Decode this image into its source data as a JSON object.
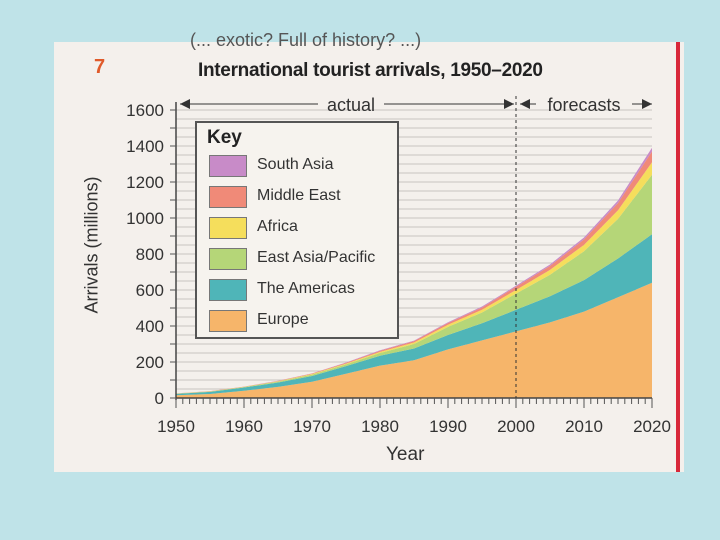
{
  "figure_number": "7",
  "cut_text": "(... exotic? Full of history? ...)",
  "chart_data": {
    "type": "area",
    "stacked": true,
    "title": "International tourist arrivals, 1950–2020",
    "xlabel": "Year",
    "ylabel": "Arrivals (millions)",
    "xlim": [
      1950,
      2020
    ],
    "ylim": [
      0,
      1600
    ],
    "x_ticks": [
      1950,
      1960,
      1970,
      1980,
      1990,
      2000,
      2010,
      2020
    ],
    "y_ticks": [
      0,
      200,
      400,
      600,
      800,
      1000,
      1200,
      1400,
      1600
    ],
    "annotations": {
      "actual": "actual",
      "forecasts": "forecasts",
      "split_year": 2000
    },
    "legend_title": "Key",
    "legend_position": "top-left",
    "x": [
      1950,
      1955,
      1960,
      1965,
      1970,
      1975,
      1980,
      1985,
      1990,
      1995,
      2000,
      2005,
      2010,
      2015,
      2020
    ],
    "series": [
      {
        "name": "Europe",
        "color": "#f6b56a",
        "values": [
          15,
          22,
          40,
          62,
          90,
          135,
          180,
          210,
          270,
          320,
          370,
          420,
          480,
          560,
          640
        ]
      },
      {
        "name": "The Americas",
        "color": "#4fb5b8",
        "values": [
          8,
          12,
          18,
          24,
          32,
          42,
          55,
          65,
          80,
          95,
          120,
          145,
          175,
          215,
          270
        ]
      },
      {
        "name": "East Asia/Pacific",
        "color": "#b5d678",
        "values": [
          1,
          2,
          3,
          5,
          8,
          10,
          15,
          25,
          45,
          60,
          90,
          120,
          160,
          220,
          330
        ]
      },
      {
        "name": "Africa",
        "color": "#f5de5c",
        "values": [
          1,
          1,
          1,
          2,
          3,
          4,
          6,
          8,
          12,
          15,
          20,
          27,
          36,
          48,
          70
        ]
      },
      {
        "name": "Middle East",
        "color": "#f08a78",
        "values": [
          1,
          1,
          1,
          2,
          3,
          4,
          6,
          8,
          10,
          13,
          18,
          22,
          30,
          40,
          60
        ]
      },
      {
        "name": "South Asia",
        "color": "#c88bc8",
        "values": [
          0,
          0,
          0,
          1,
          1,
          2,
          3,
          3,
          4,
          5,
          6,
          8,
          11,
          14,
          20
        ]
      }
    ],
    "legend_order": [
      "South Asia",
      "Middle East",
      "Africa",
      "East Asia/Pacific",
      "The Americas",
      "Europe"
    ]
  }
}
